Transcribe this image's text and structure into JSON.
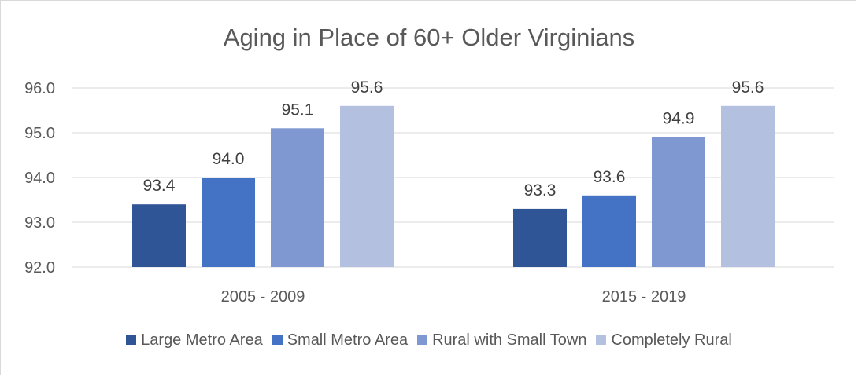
{
  "chart_data": {
    "type": "bar",
    "title": "Aging in Place of 60+ Older Virginians",
    "categories": [
      "2005 - 2009",
      "2015 - 2019"
    ],
    "series": [
      {
        "name": "Large Metro Area",
        "color": "#2f5597",
        "values": [
          93.4,
          93.3
        ],
        "labels": [
          "93.4",
          "93.3"
        ]
      },
      {
        "name": "Small Metro Area",
        "color": "#4472c4",
        "values": [
          94.0,
          93.6
        ],
        "labels": [
          "94.0",
          "93.6"
        ]
      },
      {
        "name": "Rural with Small Town",
        "color": "#7f98d2",
        "values": [
          95.1,
          94.9
        ],
        "labels": [
          "95.1",
          "94.9"
        ]
      },
      {
        "name": "Completely Rural",
        "color": "#b4c0e0",
        "values": [
          95.6,
          95.6
        ],
        "labels": [
          "95.6",
          "95.6"
        ]
      }
    ],
    "ylim": [
      92.0,
      96.0
    ],
    "yticks": [
      "92.0",
      "93.0",
      "94.0",
      "95.0",
      "96.0"
    ],
    "grid": true,
    "legend": "bottom"
  }
}
